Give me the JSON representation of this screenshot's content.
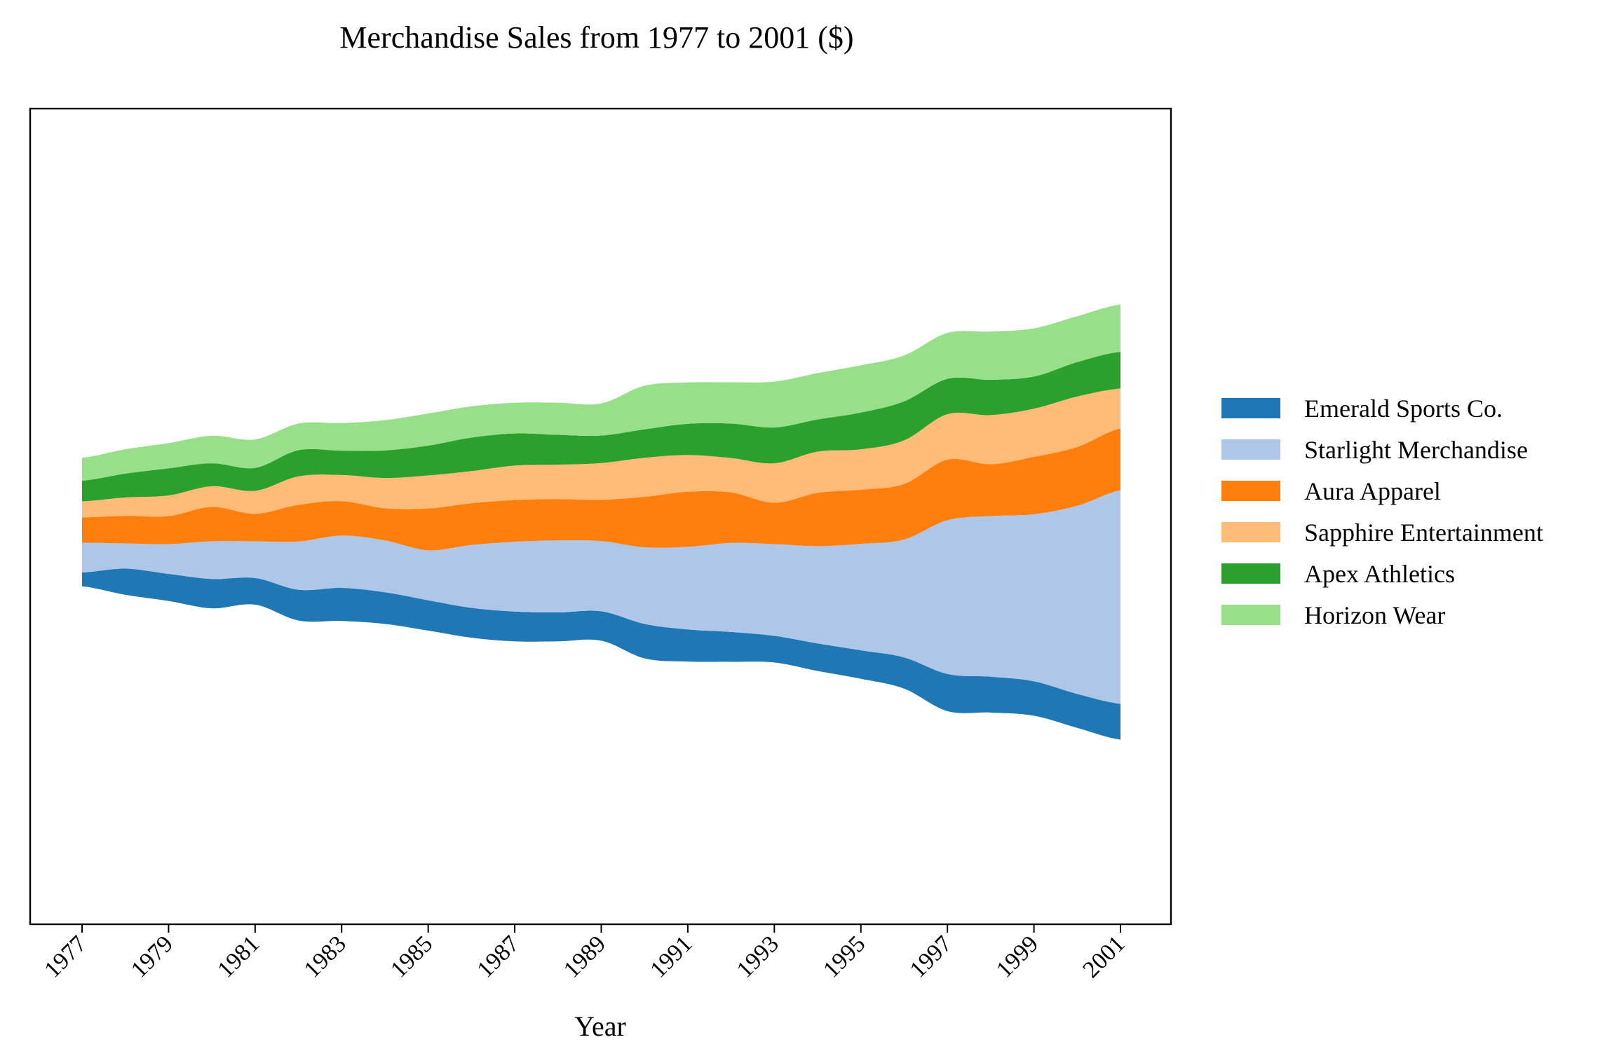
{
  "chart_data": {
    "type": "area",
    "subtype": "streamgraph",
    "title": "Merchandise Sales from 1977 to 2001 ($)",
    "xlabel": "Year",
    "ylabel": "",
    "x": [
      1977,
      1978,
      1979,
      1980,
      1981,
      1982,
      1983,
      1984,
      1985,
      1986,
      1987,
      1988,
      1989,
      1990,
      1991,
      1992,
      1993,
      1994,
      1995,
      1996,
      1997,
      1998,
      1999,
      2000,
      2001
    ],
    "xticks": [
      "1977",
      "1979",
      "1981",
      "1983",
      "1985",
      "1987",
      "1989",
      "1991",
      "1993",
      "1995",
      "1997",
      "1999",
      "2001"
    ],
    "yticks_visible": false,
    "grid": false,
    "legend_position": "right, outside plot",
    "series": [
      {
        "name": "Emerald Sports Co.",
        "color": "#1f77b4",
        "values": [
          30,
          57,
          59,
          64,
          58,
          67,
          72,
          69,
          66,
          65,
          65,
          63,
          64,
          75,
          70,
          65,
          58,
          60,
          62,
          68,
          81,
          78,
          75,
          74,
          78
        ]
      },
      {
        "name": "Starlight Merchandise",
        "color": "#aec7e8",
        "values": [
          65,
          55,
          65,
          82,
          80,
          105,
          114,
          113,
          109,
          137,
          152,
          157,
          153,
          167,
          180,
          194,
          200,
          212,
          232,
          257,
          335,
          350,
          364,
          410,
          465
        ]
      },
      {
        "name": "Aura Apparel",
        "color": "#ff7f0e",
        "values": [
          55,
          60,
          61,
          75,
          60,
          80,
          75,
          70,
          91,
          91,
          91,
          90,
          90,
          110,
          120,
          110,
          90,
          116,
          118,
          121,
          132,
          113,
          125,
          128,
          135
        ]
      },
      {
        "name": "Sapphire Entertainment",
        "color": "#ffbb78",
        "values": [
          35,
          40,
          45,
          45,
          50,
          62,
          57,
          66,
          72,
          70,
          75,
          75,
          80,
          85,
          80,
          75,
          86,
          90,
          88,
          95,
          99,
          107,
          105,
          110,
          87
        ]
      },
      {
        "name": "Apex Athletics",
        "color": "#2ca02c",
        "values": [
          45,
          52,
          59,
          50,
          50,
          57,
          53,
          60,
          65,
          73,
          70,
          65,
          60,
          62,
          68,
          75,
          78,
          70,
          80,
          85,
          77,
          77,
          70,
          75,
          80
        ]
      },
      {
        "name": "Horizon Wear",
        "color": "#98df8a",
        "values": [
          50,
          53,
          55,
          60,
          62,
          58,
          60,
          66,
          70,
          68,
          67,
          70,
          70,
          95,
          90,
          90,
          100,
          101,
          103,
          100,
          100,
          105,
          105,
          100,
          103
        ]
      }
    ]
  }
}
